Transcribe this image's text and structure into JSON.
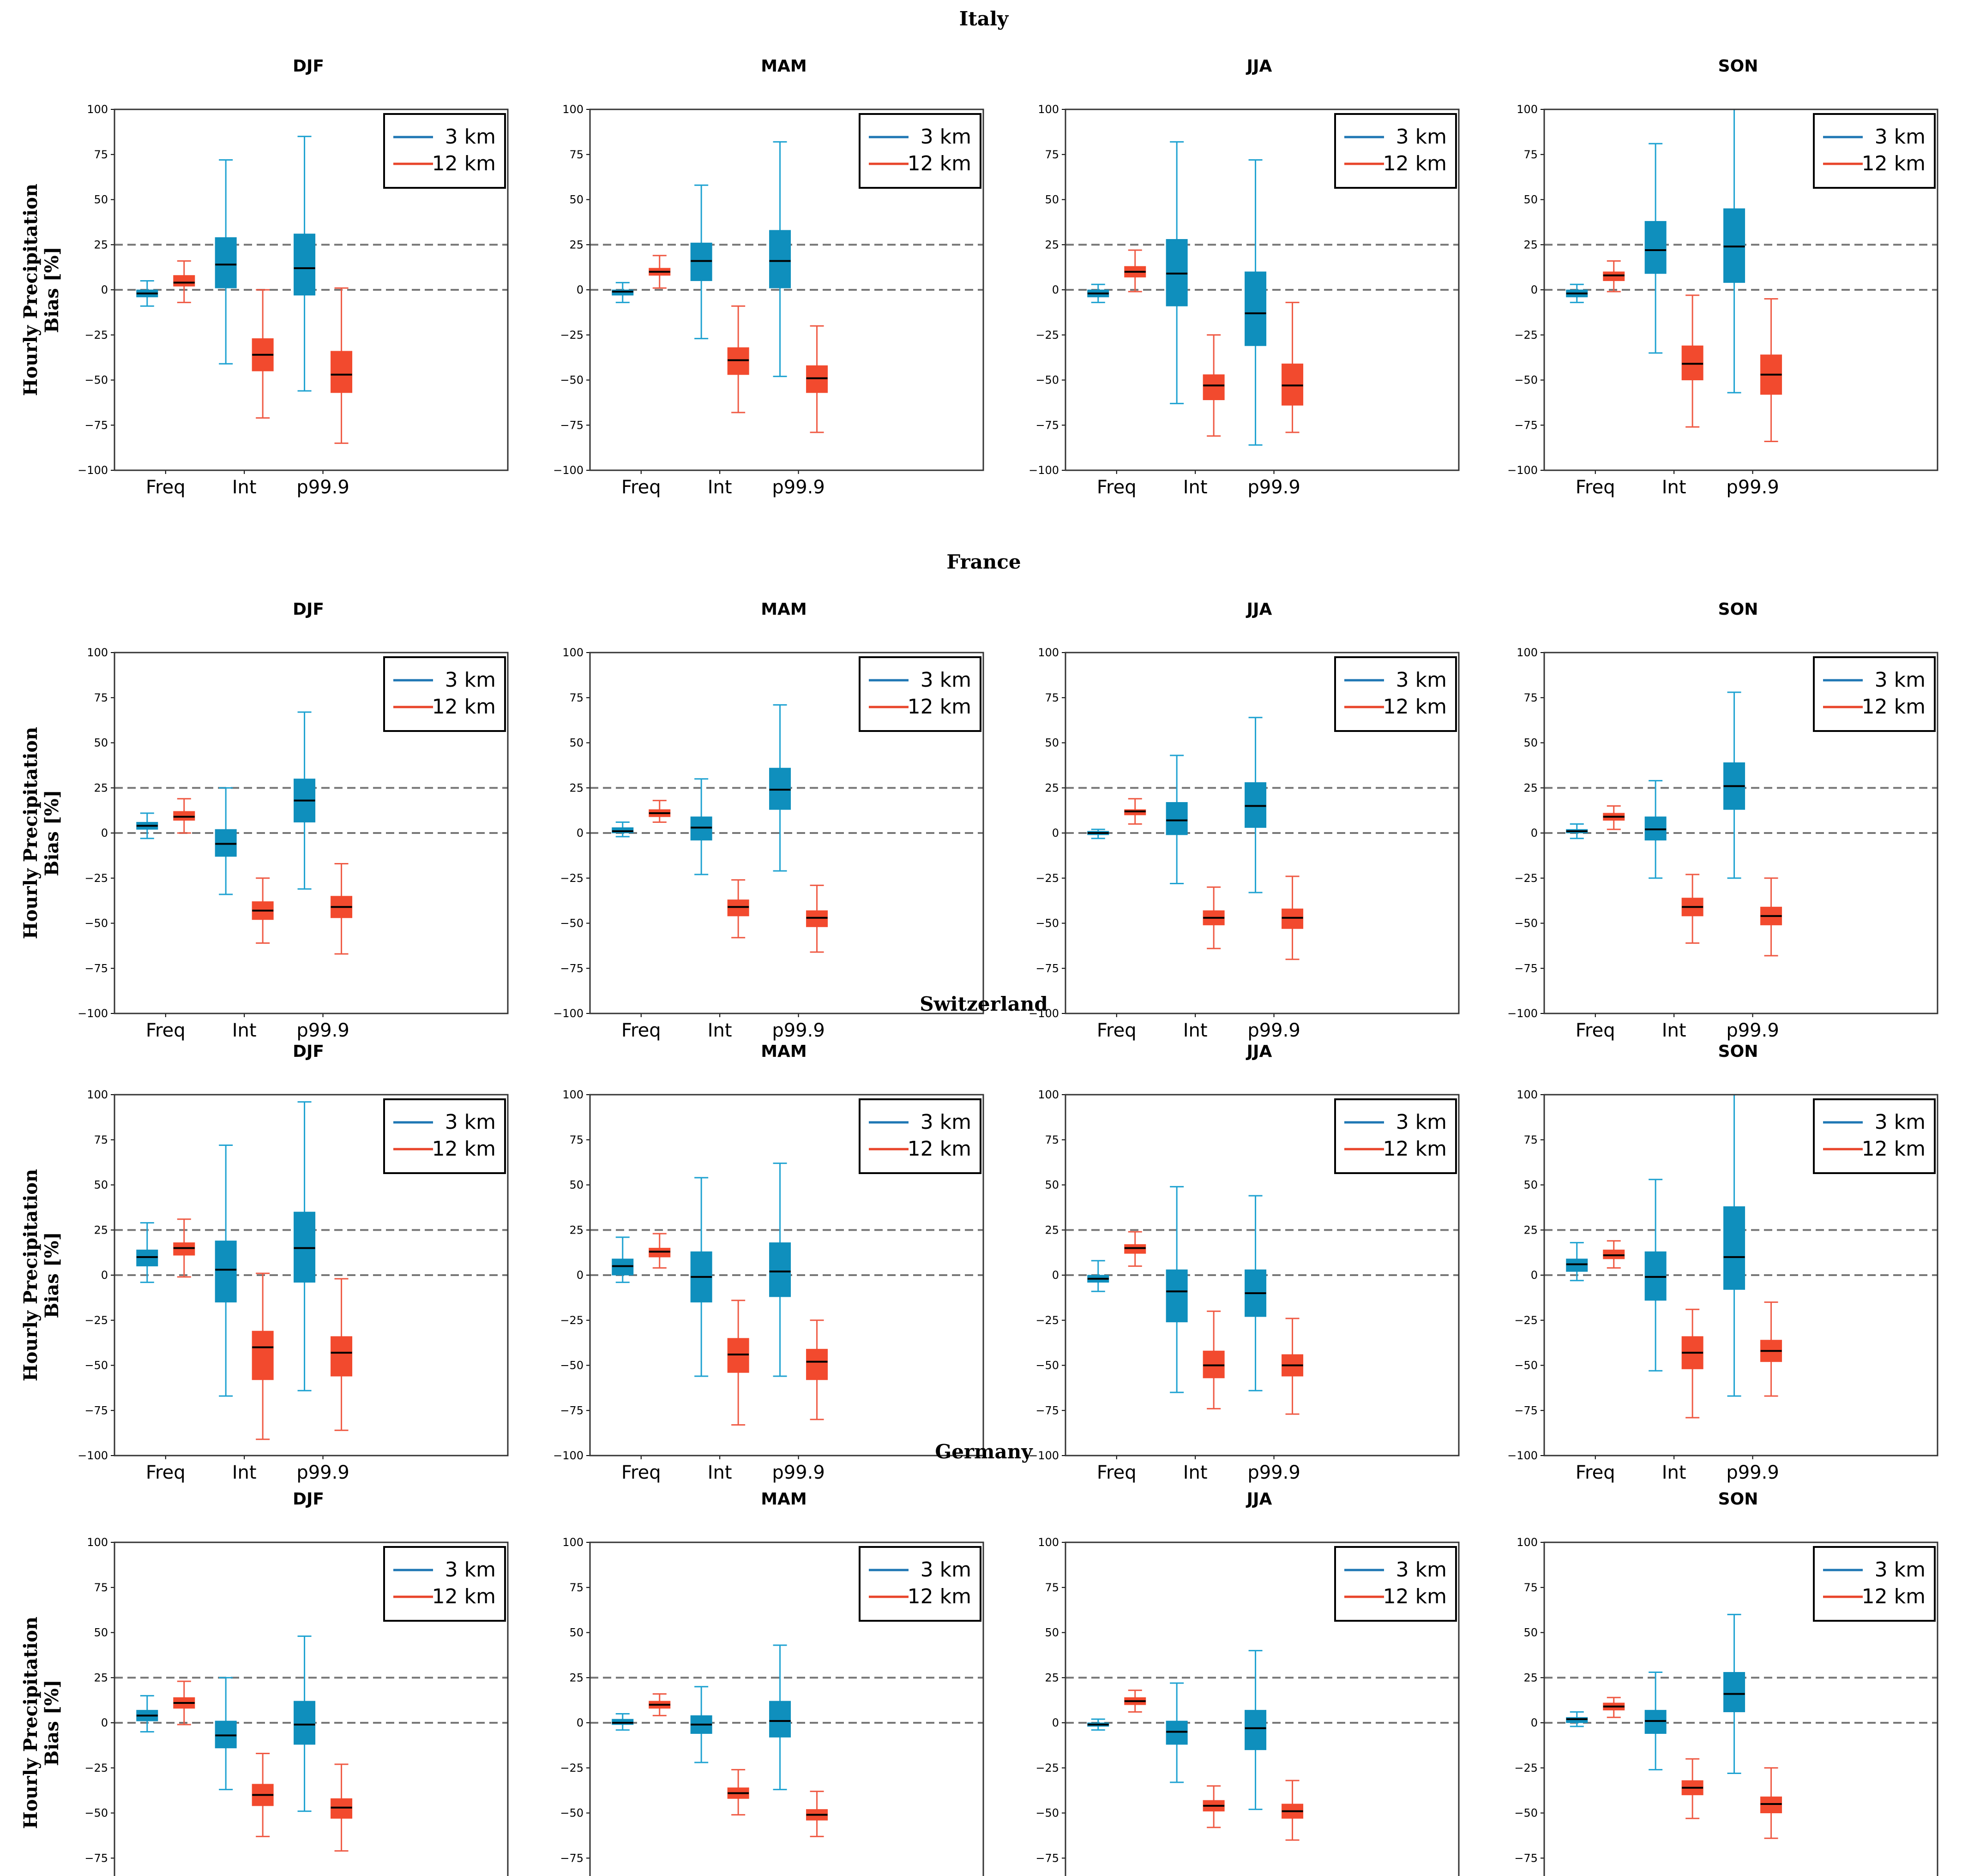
{
  "colors": {
    "km3_fill": "#0f8fbd",
    "km3_line": "#1fa2d1",
    "km12_fill": "#f24a2e",
    "km12_line": "#ef5a44",
    "legend_3km": "#1f77b4",
    "legend_12km": "#e8442a",
    "dash": "#777777"
  },
  "chart_data": {
    "type": "box",
    "ylabel_line1": "Hourly Precipitation",
    "ylabel_line2": "Bias [%]",
    "categories": [
      "Freq",
      "Int",
      "p99.9"
    ],
    "ylim": [
      -100,
      100
    ],
    "yticks": [
      -100,
      -75,
      -50,
      -25,
      0,
      25,
      50,
      75,
      100
    ],
    "ytick_labels": [
      "−100",
      "−75",
      "−50",
      "−25",
      "0",
      "25",
      "50",
      "75",
      "100"
    ],
    "legend": [
      "3 km",
      "12 km"
    ],
    "reference_lines": [
      0,
      25
    ],
    "box_fields": [
      "whisker_low",
      "q1",
      "median",
      "q3",
      "whisker_high"
    ],
    "regions": [
      {
        "name": "Italy",
        "panels": [
          {
            "season": "DJF",
            "km3": [
              [
                -9,
                -4,
                -2,
                0,
                5
              ],
              [
                -41,
                1,
                14,
                29,
                72
              ],
              [
                -56,
                -3,
                12,
                31,
                85
              ]
            ],
            "km12": [
              [
                -7,
                2,
                4,
                8,
                16
              ],
              [
                -71,
                -45,
                -36,
                -27,
                0
              ],
              [
                -85,
                -57,
                -47,
                -34,
                1
              ]
            ]
          },
          {
            "season": "MAM",
            "km3": [
              [
                -7,
                -3,
                -1,
                0,
                4
              ],
              [
                -27,
                5,
                16,
                26,
                58
              ],
              [
                -48,
                1,
                16,
                33,
                82
              ]
            ],
            "km12": [
              [
                1,
                8,
                10,
                12,
                19
              ],
              [
                -68,
                -47,
                -39,
                -32,
                -9
              ],
              [
                -79,
                -57,
                -49,
                -42,
                -20
              ]
            ]
          },
          {
            "season": "JJA",
            "km3": [
              [
                -7,
                -4,
                -2,
                0,
                3
              ],
              [
                -63,
                -9,
                9,
                28,
                82
              ],
              [
                -86,
                -31,
                -13,
                10,
                72
              ]
            ],
            "km12": [
              [
                -1,
                7,
                10,
                13,
                22
              ],
              [
                -81,
                -61,
                -53,
                -47,
                -25
              ],
              [
                -79,
                -64,
                -53,
                -41,
                -7
              ]
            ]
          },
          {
            "season": "SON",
            "km3": [
              [
                -7,
                -4,
                -2,
                0,
                3
              ],
              [
                -35,
                9,
                22,
                38,
                81
              ],
              [
                -57,
                4,
                24,
                45,
                100
              ]
            ],
            "km12": [
              [
                -1,
                5,
                8,
                10,
                16
              ],
              [
                -76,
                -50,
                -41,
                -31,
                -3
              ],
              [
                -84,
                -58,
                -47,
                -36,
                -5
              ]
            ]
          }
        ]
      },
      {
        "name": "France",
        "panels": [
          {
            "season": "DJF",
            "km3": [
              [
                -3,
                2,
                4,
                6,
                11
              ],
              [
                -34,
                -13,
                -6,
                2,
                25
              ],
              [
                -31,
                6,
                18,
                30,
                67
              ]
            ],
            "km12": [
              [
                0,
                7,
                9,
                12,
                19
              ],
              [
                -61,
                -48,
                -43,
                -38,
                -25
              ],
              [
                -67,
                -47,
                -41,
                -35,
                -17
              ]
            ]
          },
          {
            "season": "MAM",
            "km3": [
              [
                -2,
                0,
                1,
                3,
                6
              ],
              [
                -23,
                -4,
                3,
                9,
                30
              ],
              [
                -21,
                13,
                24,
                36,
                71
              ]
            ],
            "km12": [
              [
                6,
                9,
                11,
                13,
                18
              ],
              [
                -58,
                -46,
                -41,
                -37,
                -26
              ],
              [
                -66,
                -52,
                -47,
                -43,
                -29
              ]
            ]
          },
          {
            "season": "JJA",
            "km3": [
              [
                -3,
                -1,
                0,
                1,
                2
              ],
              [
                -28,
                -1,
                7,
                17,
                43
              ],
              [
                -33,
                3,
                15,
                28,
                64
              ]
            ],
            "km12": [
              [
                5,
                10,
                12,
                13,
                19
              ],
              [
                -64,
                -51,
                -47,
                -43,
                -30
              ],
              [
                -70,
                -53,
                -47,
                -42,
                -24
              ]
            ]
          },
          {
            "season": "SON",
            "km3": [
              [
                -3,
                0,
                1,
                2,
                5
              ],
              [
                -25,
                -4,
                2,
                9,
                29
              ],
              [
                -25,
                13,
                26,
                39,
                78
              ]
            ],
            "km12": [
              [
                2,
                7,
                9,
                11,
                15
              ],
              [
                -61,
                -46,
                -41,
                -36,
                -23
              ],
              [
                -68,
                -51,
                -46,
                -41,
                -25
              ]
            ]
          }
        ]
      },
      {
        "name": "Switzerland",
        "panels": [
          {
            "season": "DJF",
            "km3": [
              [
                -4,
                5,
                10,
                14,
                29
              ],
              [
                -67,
                -15,
                3,
                19,
                72
              ],
              [
                -64,
                -4,
                15,
                35,
                96
              ]
            ],
            "km12": [
              [
                -1,
                11,
                15,
                18,
                31
              ],
              [
                -91,
                -58,
                -40,
                -31,
                1
              ],
              [
                -86,
                -56,
                -43,
                -34,
                -2
              ]
            ]
          },
          {
            "season": "MAM",
            "km3": [
              [
                -4,
                0,
                5,
                9,
                21
              ],
              [
                -56,
                -15,
                -1,
                13,
                54
              ],
              [
                -56,
                -12,
                2,
                18,
                62
              ]
            ],
            "km12": [
              [
                4,
                10,
                13,
                15,
                23
              ],
              [
                -83,
                -54,
                -44,
                -35,
                -14
              ],
              [
                -80,
                -58,
                -48,
                -41,
                -25
              ]
            ]
          },
          {
            "season": "JJA",
            "km3": [
              [
                -9,
                -4,
                -2,
                0,
                8
              ],
              [
                -65,
                -26,
                -9,
                3,
                49
              ],
              [
                -64,
                -23,
                -10,
                3,
                44
              ]
            ],
            "km12": [
              [
                5,
                12,
                15,
                17,
                24
              ],
              [
                -74,
                -57,
                -50,
                -42,
                -20
              ],
              [
                -77,
                -56,
                -50,
                -44,
                -24
              ]
            ]
          },
          {
            "season": "SON",
            "km3": [
              [
                -3,
                2,
                6,
                9,
                18
              ],
              [
                -53,
                -14,
                -1,
                13,
                53
              ],
              [
                -67,
                -8,
                10,
                38,
                100
              ]
            ],
            "km12": [
              [
                4,
                9,
                11,
                14,
                19
              ],
              [
                -79,
                -52,
                -43,
                -34,
                -19
              ],
              [
                -67,
                -48,
                -42,
                -36,
                -15
              ]
            ]
          }
        ]
      },
      {
        "name": "Germany",
        "panels": [
          {
            "season": "DJF",
            "km3": [
              [
                -5,
                1,
                4,
                7,
                15
              ],
              [
                -37,
                -14,
                -7,
                1,
                25
              ],
              [
                -49,
                -12,
                -1,
                12,
                48
              ]
            ],
            "km12": [
              [
                -1,
                8,
                11,
                14,
                23
              ],
              [
                -63,
                -46,
                -40,
                -34,
                -17
              ],
              [
                -71,
                -53,
                -47,
                -42,
                -23
              ]
            ]
          },
          {
            "season": "MAM",
            "km3": [
              [
                -4,
                -1,
                0,
                2,
                5
              ],
              [
                -22,
                -6,
                -1,
                4,
                20
              ],
              [
                -37,
                -8,
                1,
                12,
                43
              ]
            ],
            "km12": [
              [
                4,
                8,
                10,
                12,
                16
              ],
              [
                -51,
                -42,
                -39,
                -36,
                -26
              ],
              [
                -63,
                -54,
                -51,
                -48,
                -38
              ]
            ]
          },
          {
            "season": "JJA",
            "km3": [
              [
                -4,
                -2,
                -1,
                0,
                2
              ],
              [
                -33,
                -12,
                -5,
                1,
                22
              ],
              [
                -48,
                -15,
                -3,
                7,
                40
              ]
            ],
            "km12": [
              [
                6,
                10,
                12,
                14,
                18
              ],
              [
                -58,
                -49,
                -46,
                -43,
                -35
              ],
              [
                -65,
                -53,
                -49,
                -45,
                -32
              ]
            ]
          },
          {
            "season": "SON",
            "km3": [
              [
                -2,
                0,
                2,
                3,
                6
              ],
              [
                -26,
                -6,
                1,
                7,
                28
              ],
              [
                -28,
                6,
                16,
                28,
                60
              ]
            ],
            "km12": [
              [
                3,
                7,
                9,
                11,
                14
              ],
              [
                -53,
                -40,
                -36,
                -32,
                -20
              ],
              [
                -64,
                -50,
                -45,
                -41,
                -25
              ]
            ]
          }
        ]
      }
    ]
  }
}
